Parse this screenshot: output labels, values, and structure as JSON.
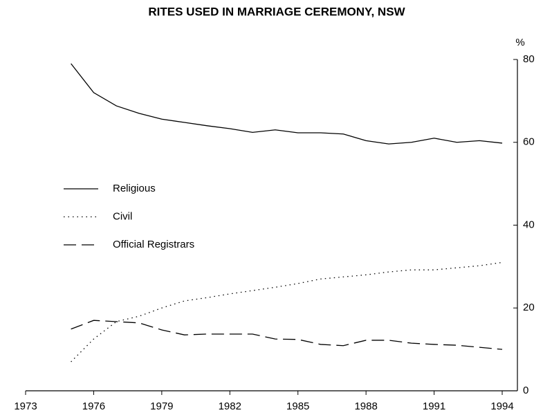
{
  "chart_data": {
    "type": "line",
    "title": "RITES USED IN MARRIAGE CEREMONY, NSW",
    "y_axis_label": "%",
    "x": [
      1975,
      1976,
      1977,
      1978,
      1979,
      1980,
      1981,
      1982,
      1983,
      1984,
      1985,
      1986,
      1987,
      1988,
      1989,
      1990,
      1991,
      1992,
      1993,
      1994
    ],
    "series": [
      {
        "name": "Religious",
        "color": "#000000",
        "dash": "solid",
        "values": [
          79,
          72,
          68.8,
          67,
          65.6,
          64.8,
          64,
          63.3,
          62.4,
          63,
          62.3,
          62.3,
          62,
          60.4,
          59.6,
          60,
          61,
          60,
          60.4,
          59.8
        ]
      },
      {
        "name": "Civil",
        "color": "#000000",
        "dash": "dotted",
        "values": [
          7,
          12.5,
          16.7,
          18,
          20,
          21.7,
          22.5,
          23.4,
          24.2,
          25,
          25.9,
          27,
          27.5,
          28,
          28.7,
          29.2,
          29.2,
          29.7,
          30.2,
          31
        ]
      },
      {
        "name": "Official Registrars",
        "color": "#000000",
        "dash": "dashed",
        "values": [
          14.9,
          17,
          16.7,
          16.4,
          14.7,
          13.5,
          13.7,
          13.7,
          13.7,
          12.5,
          12.4,
          11.2,
          10.9,
          12.2,
          12.2,
          11.5,
          11.2,
          11,
          10.5,
          10
        ]
      }
    ],
    "xlim": [
      1973,
      1994
    ],
    "xticks": [
      1973,
      1976,
      1979,
      1982,
      1985,
      1988,
      1991,
      1994
    ],
    "ylim": [
      0,
      80
    ],
    "yticks": [
      0,
      20,
      40,
      60,
      80
    ],
    "y_axis_side": "right",
    "grid": false,
    "legend": "left"
  }
}
